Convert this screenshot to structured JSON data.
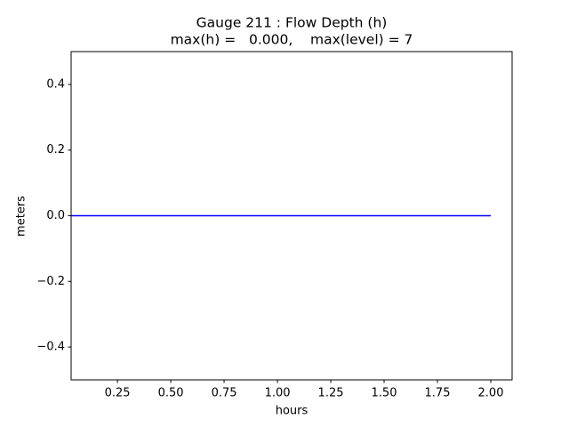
{
  "chart_data": {
    "type": "line",
    "title": "Gauge 211 : Flow Depth (h)",
    "subtitle": "max(h) =   0.000,    max(level) = 7",
    "x_label": "hours",
    "y_label": "meters",
    "x": [
      0.033,
      2.0
    ],
    "series": [
      {
        "name": "h",
        "color": "#0000ff",
        "values": [
          0,
          0
        ]
      }
    ],
    "xlim": [
      0.033,
      2.1
    ],
    "xticks": [
      0.25,
      {
        "value": 0.5,
        "label": "0.50"
      },
      0.75,
      {
        "value": 1.0,
        "label": "1.00"
      },
      1.25,
      {
        "value": 1.5,
        "label": "1.50"
      },
      1.75,
      {
        "value": 2.0,
        "label": "2.00"
      }
    ],
    "ylim": [
      -0.5,
      0.5
    ],
    "yticks": [
      {
        "value": -0.4,
        "label": "−0.4"
      },
      {
        "value": -0.2,
        "label": "−0.2"
      },
      {
        "value": 0.0,
        "label": "0.0"
      },
      {
        "value": 0.2,
        "label": "0.2"
      },
      {
        "value": 0.4,
        "label": "0.4"
      }
    ],
    "grid": false
  }
}
